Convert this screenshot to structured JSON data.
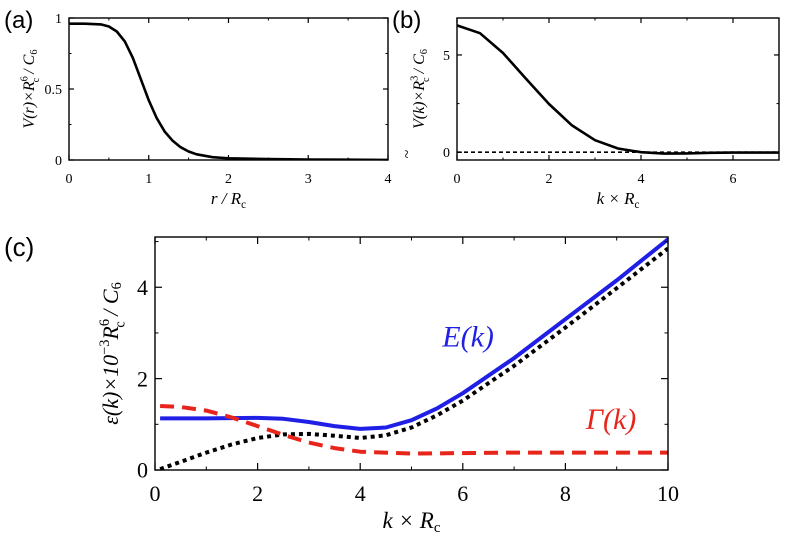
{
  "colors": {
    "axes": "#000000",
    "blue": "#1f1fe6",
    "red": "#e8251b",
    "black": "#000000"
  },
  "chart_data": [
    {
      "panel_label": "(a)",
      "type": "line",
      "xlabel": {
        "main": "r / R",
        "sub": "c"
      },
      "ylabel": {
        "p1": "V(r)×R",
        "sup": "6",
        "sub": "c",
        "p2": " / C",
        "sub2": "6"
      },
      "xlim": [
        0,
        4
      ],
      "ylim": [
        0,
        1.0
      ],
      "xticks": [
        0,
        1,
        2,
        3,
        4
      ],
      "xtick_labels": [
        "0",
        "1",
        "2",
        "3",
        "4"
      ],
      "yticks": [
        0,
        0.5,
        1
      ],
      "ytick_labels": [
        "0",
        "0.5",
        "1"
      ],
      "series": [
        {
          "style": "solid",
          "color": "#000000",
          "x": [
            0,
            0.2,
            0.4,
            0.5,
            0.6,
            0.7,
            0.8,
            0.9,
            1.0,
            1.1,
            1.2,
            1.3,
            1.4,
            1.5,
            1.6,
            1.8,
            2.0,
            2.5,
            3.0,
            3.5,
            4.0
          ],
          "y": [
            0.96,
            0.96,
            0.955,
            0.94,
            0.905,
            0.835,
            0.72,
            0.57,
            0.42,
            0.295,
            0.2,
            0.135,
            0.09,
            0.06,
            0.04,
            0.02,
            0.012,
            0.006,
            0.003,
            0.002,
            0.001
          ]
        }
      ]
    },
    {
      "panel_label": "(b)",
      "type": "line",
      "xlabel": {
        "main": "k × R",
        "sub": "c"
      },
      "ylabel": {
        "p1": "V(k)×R",
        "sup": "3",
        "sub": "c",
        "p2": " / C",
        "sub2": "6",
        "tilde": "~"
      },
      "xlim": [
        0,
        7
      ],
      "ylim": [
        -0.4,
        6.9
      ],
      "xticks": [
        0,
        2,
        4,
        6
      ],
      "xtick_labels": [
        "0",
        "2",
        "4",
        "6"
      ],
      "yticks": [
        0,
        5
      ],
      "ytick_labels": [
        "0",
        "5"
      ],
      "series": [
        {
          "style": "solid",
          "color": "#000000",
          "x": [
            0,
            0.5,
            1.0,
            1.5,
            2.0,
            2.5,
            3.0,
            3.5,
            4.0,
            4.5,
            5.0,
            5.5,
            6.0,
            6.5,
            7.0
          ],
          "y": [
            6.52,
            6.12,
            5.1,
            3.78,
            2.48,
            1.38,
            0.62,
            0.19,
            0.0,
            -0.07,
            -0.06,
            -0.03,
            -0.02,
            -0.02,
            -0.02
          ]
        },
        {
          "style": "dashed",
          "color": "#000000",
          "x": [
            0,
            7
          ],
          "y": [
            0,
            0
          ]
        }
      ]
    },
    {
      "panel_label": "(c)",
      "type": "line",
      "xlabel": {
        "main": "k × R",
        "sub": "c"
      },
      "ylabel": {
        "p1": "ε(k)×10",
        "sup": "−3",
        "mid": "R",
        "sup2": "6",
        "sub": "c",
        "p2": " / C",
        "sub2": "6"
      },
      "xlim": [
        0,
        10
      ],
      "ylim": [
        0,
        5.1
      ],
      "xticks": [
        0,
        2,
        4,
        6,
        8,
        10
      ],
      "xtick_labels": [
        "0",
        "2",
        "4",
        "6",
        "8",
        "10"
      ],
      "yticks": [
        0,
        2,
        4
      ],
      "ytick_labels": [
        "0",
        "2",
        "4"
      ],
      "annotations": [
        {
          "text": "E(k)",
          "x": 5.6,
          "y": 2.7,
          "color": "#1f1fe6"
        },
        {
          "text": "Γ(k)",
          "x": 8.4,
          "y": 0.9,
          "color": "#e8251b"
        }
      ],
      "series": [
        {
          "name": "E(k)",
          "style": "solid",
          "color": "#1f1fe6",
          "x": [
            0.1,
            1,
            2,
            2.5,
            3,
            3.5,
            4,
            4.5,
            5,
            5.5,
            6,
            7,
            8,
            9,
            10
          ],
          "y": [
            1.13,
            1.13,
            1.14,
            1.12,
            1.05,
            0.96,
            0.9,
            0.93,
            1.09,
            1.35,
            1.68,
            2.45,
            3.3,
            4.15,
            5.05
          ]
        },
        {
          "style": "dotted",
          "color": "#000000",
          "x": [
            0.1,
            0.5,
            1,
            1.5,
            2,
            2.5,
            3,
            3.5,
            4,
            4.5,
            5,
            5.5,
            6,
            7,
            8,
            9,
            10
          ],
          "y": [
            0.02,
            0.18,
            0.38,
            0.56,
            0.7,
            0.78,
            0.79,
            0.75,
            0.7,
            0.76,
            0.93,
            1.2,
            1.52,
            2.28,
            3.12,
            3.98,
            4.85
          ]
        },
        {
          "name": "Γ(k)",
          "style": "dashed",
          "color": "#e8251b",
          "x": [
            0.1,
            0.5,
            1,
            1.5,
            2,
            2.5,
            3,
            3.5,
            4,
            5,
            6,
            7,
            8,
            9,
            10
          ],
          "y": [
            1.4,
            1.38,
            1.3,
            1.15,
            0.96,
            0.77,
            0.6,
            0.48,
            0.4,
            0.36,
            0.37,
            0.38,
            0.38,
            0.38,
            0.38
          ]
        }
      ]
    }
  ]
}
